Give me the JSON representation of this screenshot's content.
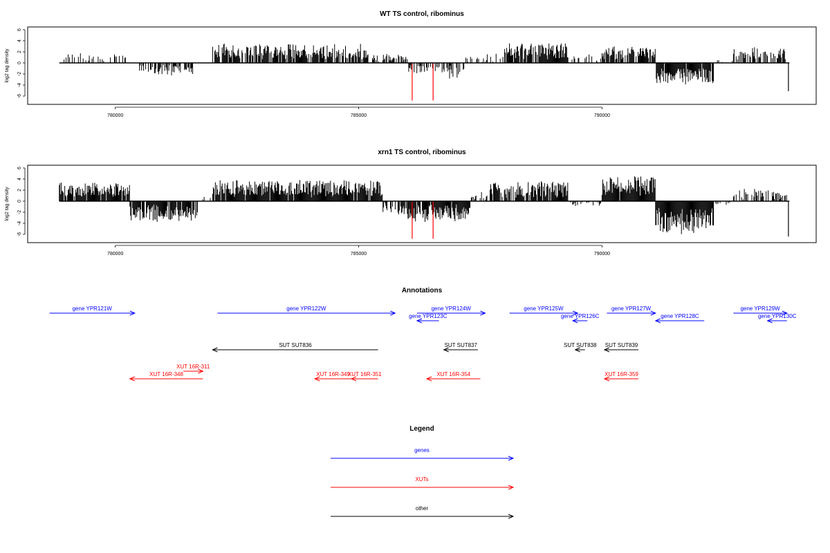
{
  "colors": {
    "gene": "#0000ff",
    "xut": "#ff0000",
    "other": "#000000",
    "bar": "#000000",
    "highlight": "#ff0000"
  },
  "chart_data": [
    {
      "type": "bar",
      "title": "WT TS control, ribominus",
      "ylabel": "log2 tag density",
      "xlim": [
        778200,
        794400
      ],
      "ylim": [
        -7,
        6
      ],
      "yticks": [
        -6,
        -4,
        -2,
        0,
        2,
        4,
        6
      ],
      "xticks": [
        780000,
        785000,
        790000
      ],
      "xtick_labels": [
        "780000",
        "785000",
        "790000"
      ],
      "x_start": 778850,
      "x_end": 793850,
      "profile": [
        {
          "from": 778850,
          "to": 779900,
          "mean": 1.0,
          "density": 0.2
        },
        {
          "from": 779900,
          "to": 780400,
          "mean": 1.1,
          "density": 0.3
        },
        {
          "from": 780400,
          "to": 781600,
          "mean": -1.4,
          "density": 0.5
        },
        {
          "from": 781600,
          "to": 782000,
          "mean": 0,
          "density": 0
        },
        {
          "from": 782000,
          "to": 785200,
          "mean": 2.2,
          "density": 0.75
        },
        {
          "from": 785200,
          "to": 786000,
          "mean": 1.0,
          "density": 0.45
        },
        {
          "from": 786000,
          "to": 786700,
          "mean": -1.2,
          "density": 0.4
        },
        {
          "from": 786700,
          "to": 787200,
          "mean": -1.8,
          "density": 0.5
        },
        {
          "from": 787200,
          "to": 787600,
          "mean": 0.8,
          "density": 0.3
        },
        {
          "from": 787600,
          "to": 788000,
          "mean": 1.0,
          "density": 0.3
        },
        {
          "from": 788000,
          "to": 789300,
          "mean": 2.4,
          "density": 0.85
        },
        {
          "from": 789300,
          "to": 790000,
          "mean": 1.0,
          "density": 0.3
        },
        {
          "from": 790000,
          "to": 791100,
          "mean": 2.0,
          "density": 0.7
        },
        {
          "from": 791100,
          "to": 792300,
          "mean": -2.6,
          "density": 0.9
        },
        {
          "from": 792300,
          "to": 792700,
          "mean": 0.4,
          "density": 0.2
        },
        {
          "from": 792700,
          "to": 793800,
          "mean": 1.8,
          "density": 0.55
        }
      ],
      "highlights": [
        {
          "x": 786100,
          "value": -6.8
        },
        {
          "x": 786530,
          "value": -6.8
        }
      ],
      "end_bar": {
        "x": 793830,
        "value": -5.1
      }
    },
    {
      "type": "bar",
      "title": "xrn1 TS control, ribominus",
      "ylabel": "log2 tag density",
      "xlim": [
        778200,
        794400
      ],
      "ylim": [
        -7,
        6
      ],
      "yticks": [
        -6,
        -4,
        -2,
        0,
        2,
        4,
        6
      ],
      "xticks": [
        780000,
        785000,
        790000
      ],
      "xtick_labels": [
        "780000",
        "785000",
        "790000"
      ],
      "x_start": 778850,
      "x_end": 793850,
      "profile": [
        {
          "from": 778850,
          "to": 780300,
          "mean": 2.2,
          "density": 0.9
        },
        {
          "from": 780300,
          "to": 781700,
          "mean": -2.4,
          "density": 0.9
        },
        {
          "from": 781700,
          "to": 782000,
          "mean": 0.5,
          "density": 0.2
        },
        {
          "from": 782000,
          "to": 785500,
          "mean": 2.6,
          "density": 0.95
        },
        {
          "from": 785500,
          "to": 786000,
          "mean": -1.5,
          "density": 0.6
        },
        {
          "from": 786000,
          "to": 787300,
          "mean": -2.4,
          "density": 0.9
        },
        {
          "from": 787300,
          "to": 787700,
          "mean": 1.0,
          "density": 0.4
        },
        {
          "from": 787700,
          "to": 789300,
          "mean": 2.3,
          "density": 0.85
        },
        {
          "from": 789300,
          "to": 790000,
          "mean": -0.6,
          "density": 0.3
        },
        {
          "from": 790000,
          "to": 791100,
          "mean": 3.0,
          "density": 0.95
        },
        {
          "from": 791100,
          "to": 792300,
          "mean": -4.0,
          "density": 1.0
        },
        {
          "from": 792300,
          "to": 792700,
          "mean": -0.4,
          "density": 0.2
        },
        {
          "from": 792700,
          "to": 793800,
          "mean": 1.4,
          "density": 0.5
        }
      ],
      "highlights": [
        {
          "x": 786100,
          "value": -6.8
        },
        {
          "x": 786530,
          "value": -6.8
        }
      ],
      "end_bar": {
        "x": 793830,
        "value": -6.4
      }
    }
  ],
  "annotations": {
    "title": "Annotations",
    "features": [
      {
        "label": "gene YPR121W",
        "cls": "gene",
        "from": 778650,
        "to": 780400,
        "row": 0
      },
      {
        "label": "gene YPR122W",
        "cls": "gene",
        "from": 782100,
        "to": 785750,
        "row": 0
      },
      {
        "label": "gene YPR123C",
        "cls": "gene",
        "from": 786650,
        "to": 786200,
        "row": 1
      },
      {
        "label": "gene YPR124W",
        "cls": "gene",
        "from": 786200,
        "to": 787600,
        "row": 0
      },
      {
        "label": "gene YPR125W",
        "cls": "gene",
        "from": 788100,
        "to": 789500,
        "row": 0
      },
      {
        "label": "gene YPR126C",
        "cls": "gene",
        "from": 789700,
        "to": 789400,
        "row": 1
      },
      {
        "label": "gene YPR127W",
        "cls": "gene",
        "from": 790100,
        "to": 791100,
        "row": 0
      },
      {
        "label": "gene YPR128C",
        "cls": "gene",
        "from": 792100,
        "to": 791100,
        "row": 1
      },
      {
        "label": "gene YPR129W",
        "cls": "gene",
        "from": 792700,
        "to": 793800,
        "row": 0
      },
      {
        "label": "gene YPR130C",
        "cls": "gene",
        "from": 793800,
        "to": 793400,
        "row": 1
      },
      {
        "label": "SUT SUT836",
        "cls": "other",
        "from": 785400,
        "to": 782000,
        "row": 2
      },
      {
        "label": "SUT SUT837",
        "cls": "other",
        "from": 787450,
        "to": 786750,
        "row": 2
      },
      {
        "label": "SUT SUT838",
        "cls": "other",
        "from": 789650,
        "to": 789450,
        "row": 2
      },
      {
        "label": "SUT SUT839",
        "cls": "other",
        "from": 790750,
        "to": 790050,
        "row": 2
      },
      {
        "label": "XUT 16R-311",
        "cls": "xut",
        "from": 781400,
        "to": 781800,
        "row": 3
      },
      {
        "label": "XUT 16R-348",
        "cls": "xut",
        "from": 781800,
        "to": 780300,
        "row": 4
      },
      {
        "label": "XUT 16R-349",
        "cls": "xut",
        "from": 784850,
        "to": 784100,
        "row": 4
      },
      {
        "label": "XUT 16R-351",
        "cls": "xut",
        "from": 785400,
        "to": 784850,
        "row": 4
      },
      {
        "label": "XUT 16R-354",
        "cls": "xut",
        "from": 787500,
        "to": 786400,
        "row": 4
      },
      {
        "label": "XUT 16R-359",
        "cls": "xut",
        "from": 790750,
        "to": 790050,
        "row": 4
      }
    ]
  },
  "legend": {
    "title": "Legend",
    "items": [
      {
        "label": "genes",
        "cls": "gene"
      },
      {
        "label": "XUTs",
        "cls": "xut"
      },
      {
        "label": "other",
        "cls": "other"
      }
    ]
  }
}
